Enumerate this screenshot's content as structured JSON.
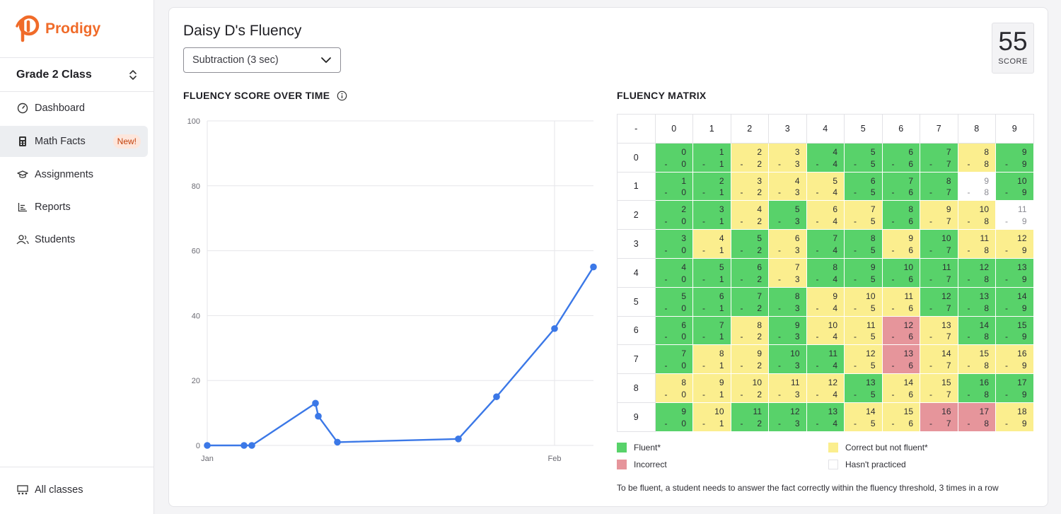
{
  "app": {
    "logo_text": "Prodigy"
  },
  "sidebar": {
    "class_name": "Grade 2 Class",
    "items": [
      {
        "label": "Dashboard",
        "icon": "dashboard-gauge-icon"
      },
      {
        "label": "Math Facts",
        "icon": "calculator-icon",
        "badge": "New!"
      },
      {
        "label": "Assignments",
        "icon": "graduation-cap-icon"
      },
      {
        "label": "Reports",
        "icon": "bar-chart-icon"
      },
      {
        "label": "Students",
        "icon": "students-icon"
      }
    ],
    "bottom_label": "All classes"
  },
  "main": {
    "title": "Daisy D's Fluency",
    "dropdown_value": "Subtraction (3 sec)",
    "score_value": "55",
    "score_label": "SCORE",
    "chart_heading": "FLUENCY SCORE OVER TIME",
    "matrix_heading": "FLUENCY MATRIX",
    "legend": [
      {
        "label": "Fluent*",
        "color": "#58d26a"
      },
      {
        "label": "Correct but not fluent*",
        "color": "#fbee8e"
      },
      {
        "label": "Incorrect",
        "color": "#e6959b"
      },
      {
        "label": "Hasn't practiced",
        "color": "#ffffff"
      }
    ],
    "note": "To be fluent, a student needs to answer the fact correctly within the fluency threshold, 3 times in a row"
  },
  "matrix": {
    "corner": "-",
    "cols": [
      "0",
      "1",
      "2",
      "3",
      "4",
      "5",
      "6",
      "7",
      "8",
      "9"
    ],
    "rows": [
      "0",
      "1",
      "2",
      "3",
      "4",
      "5",
      "6",
      "7",
      "8",
      "9"
    ],
    "status": [
      "ffssffffsf",
      "ffsssfffnf",
      "ffsfssfssn",
      "fsfsffsfss",
      "fffsffffff",
      "ffffsssfff",
      "ffsfssisff",
      "fssffsisss",
      "sssssfssff",
      "fsfffssiis"
    ],
    "status_colors": {
      "f": "#58d26a",
      "s": "#fbee8e",
      "i": "#e6959b",
      "n": "#ffffff"
    }
  },
  "chart_data": {
    "type": "line",
    "x_tick_labels": [
      "Jan",
      "Feb"
    ],
    "y_ticks": [
      0,
      20,
      40,
      60,
      80,
      100
    ],
    "ylim": [
      0,
      100
    ],
    "series": [
      {
        "values": [
          0,
          0,
          0,
          13,
          9,
          1,
          2,
          15,
          36,
          55
        ],
        "color": "#3b78e7"
      }
    ],
    "grid": true
  }
}
